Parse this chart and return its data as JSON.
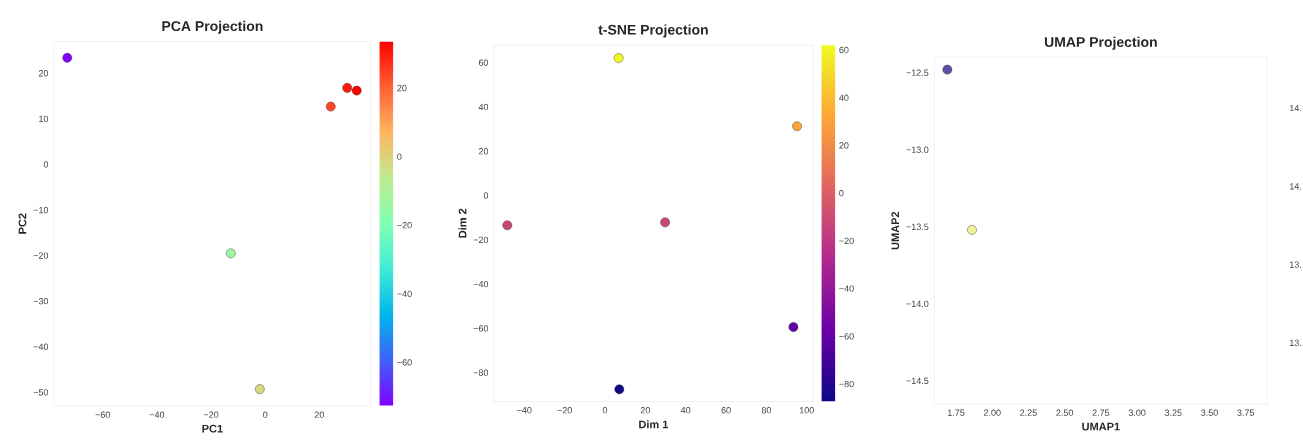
{
  "chart_data": [
    {
      "type": "scatter",
      "title": "PCA Projection",
      "xlabel": "PC1",
      "ylabel": "PC2",
      "marker": "circle",
      "x": [
        -73.1,
        30.3,
        33.8,
        24.2,
        -12.7,
        -2.0
      ],
      "values": [
        23.4,
        16.8,
        16.2,
        12.7,
        -19.5,
        -49.3
      ],
      "cvalues": [
        -73.1,
        30.3,
        33.8,
        24.2,
        -12.7,
        -2.0
      ],
      "clim": [
        -72.7,
        33.6
      ],
      "cticks": [
        {
          "value": -60,
          "label": "−60"
        },
        {
          "value": -40,
          "label": "−40"
        },
        {
          "value": -20,
          "label": "−20"
        },
        0,
        20
      ],
      "xlim": [
        -78,
        39
      ],
      "ylim": [
        -53,
        27
      ],
      "xticks": [
        {
          "value": -60,
          "label": "−60"
        },
        {
          "value": -40,
          "label": "−40"
        },
        {
          "value": -20,
          "label": "−20"
        },
        0,
        20
      ],
      "yticks": [
        {
          "value": -50,
          "label": "−50"
        },
        {
          "value": -40,
          "label": "−40"
        },
        {
          "value": -30,
          "label": "−30"
        },
        {
          "value": -20,
          "label": "−20"
        },
        {
          "value": -10,
          "label": "−10"
        },
        0,
        10,
        20
      ]
    },
    {
      "type": "scatter",
      "title": "t-SNE Projection",
      "xlabel": "Dim 1",
      "ylabel": "Dim 2",
      "marker": "circle",
      "x": [
        6.8,
        95.2,
        -48.4,
        29.8,
        93.4,
        7.1
      ],
      "values": [
        62.1,
        31.3,
        -13.4,
        -12.1,
        -59.4,
        -87.5
      ],
      "cvalues": [
        62.1,
        31.3,
        -13.4,
        -12.1,
        -59.4,
        -87.5
      ],
      "clim": [
        -87.3,
        62.1
      ],
      "cticks": [
        {
          "value": -80,
          "label": "−80"
        },
        {
          "value": -60,
          "label": "−60"
        },
        {
          "value": -40,
          "label": "−40"
        },
        {
          "value": -20,
          "label": "−20"
        },
        0,
        20,
        40,
        60
      ],
      "xlim": [
        -55,
        103
      ],
      "ylim": [
        -93,
        68
      ],
      "xticks": [
        {
          "value": -40,
          "label": "−40"
        },
        {
          "value": -20,
          "label": "−20"
        },
        0,
        20,
        40,
        60,
        80,
        100
      ],
      "yticks": [
        {
          "value": -80,
          "label": "−80"
        },
        {
          "value": -60,
          "label": "−60"
        },
        {
          "value": -40,
          "label": "−40"
        },
        {
          "value": -20,
          "label": "−20"
        },
        0,
        20,
        40,
        60
      ]
    },
    {
      "type": "scatter",
      "title": "UMAP Projection",
      "xlabel": "UMAP1",
      "ylabel": "UMAP2",
      "marker": "circle",
      "x": [
        1.69,
        1.86
      ],
      "values": [
        -12.48,
        -13.52
      ],
      "colors": [
        "#5b4fa6",
        "#f3f09c"
      ],
      "xlim": [
        1.6,
        3.9
      ],
      "ylim": [
        -14.65,
        -12.4
      ],
      "xticks": [
        1.75,
        {
          "value": 2,
          "label": "2.00"
        },
        2.25,
        {
          "value": 2.5,
          "label": "2.50"
        },
        2.75,
        {
          "value": 3,
          "label": "3.00"
        },
        3.25,
        {
          "value": 3.5,
          "label": "3.50"
        },
        3.75
      ],
      "yticks": [
        {
          "value": -14.5,
          "label": "−14.5"
        },
        {
          "value": -14,
          "label": "−14.0"
        },
        {
          "value": -13.5,
          "label": "−13.5"
        },
        {
          "value": -13,
          "label": "−13.0"
        },
        {
          "value": -12.5,
          "label": "−12.5"
        }
      ],
      "annotations": [
        "14.",
        "14.",
        "13.",
        "13."
      ]
    }
  ]
}
